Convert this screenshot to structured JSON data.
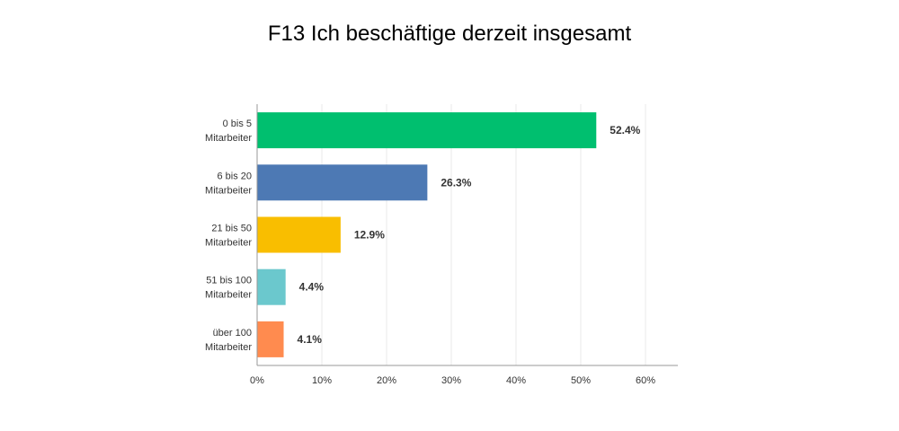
{
  "chart_data": {
    "type": "bar",
    "orientation": "horizontal",
    "title": "F13 Ich beschäftige derzeit insgesamt",
    "categories": [
      [
        "0 bis 5",
        "Mitarbeiter"
      ],
      [
        "6 bis 20",
        "Mitarbeiter"
      ],
      [
        "21 bis 50",
        "Mitarbeiter"
      ],
      [
        "51 bis 100",
        "Mitarbeiter"
      ],
      [
        "über 100",
        "Mitarbeiter"
      ]
    ],
    "values": [
      52.4,
      26.3,
      12.9,
      4.4,
      4.1
    ],
    "value_labels": [
      "52.4%",
      "26.3%",
      "12.9%",
      "4.4%",
      "4.1%"
    ],
    "colors": [
      "#00bf6f",
      "#4d79b4",
      "#f9be00",
      "#6bc8cd",
      "#ff8b4f"
    ],
    "xlim": [
      0,
      65
    ],
    "ticks": [
      0,
      10,
      20,
      30,
      40,
      50,
      60
    ],
    "tick_labels": [
      "0%",
      "10%",
      "20%",
      "30%",
      "40%",
      "50%",
      "60%"
    ],
    "grid": true,
    "xlabel": "",
    "ylabel": ""
  }
}
